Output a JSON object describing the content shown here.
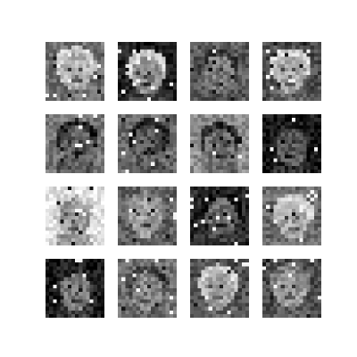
{
  "figure": {
    "grid_rows": 4,
    "grid_cols": 4,
    "tiles": [
      {
        "tone": "mid",
        "bg": "#6e6e6e",
        "face": "#b4b4b4",
        "hair": "#cfcfcf"
      },
      {
        "tone": "dark",
        "bg": "#1c1c1c",
        "face": "#8a8a8a",
        "hair": "#d0d0d0"
      },
      {
        "tone": "mid",
        "bg": "#5a5a5a",
        "face": "#7c7c7c",
        "hair": "#3a3a3a"
      },
      {
        "tone": "mid",
        "bg": "#4a4a4a",
        "face": "#a8a8a8",
        "hair": "#d8d8d8"
      },
      {
        "tone": "mid",
        "bg": "#7a7a7a",
        "face": "#5c5c5c",
        "hair": "#222222"
      },
      {
        "tone": "mid",
        "bg": "#6a6a6a",
        "face": "#5a5a5a",
        "hair": "#1e1e1e"
      },
      {
        "tone": "light",
        "bg": "#8e8e8e",
        "face": "#6e6e6e",
        "hair": "#2a2a2a"
      },
      {
        "tone": "dark",
        "bg": "#141414",
        "face": "#5a5a5a",
        "hair": "#1a1a1a"
      },
      {
        "tone": "light",
        "bg": "#e6e6e6",
        "face": "#9a9a9a",
        "hair": "#c8c8c8"
      },
      {
        "tone": "mid",
        "bg": "#5e5e5e",
        "face": "#a0a0a0",
        "hair": "#8a8a8a"
      },
      {
        "tone": "dark",
        "bg": "#2a2a2a",
        "face": "#6a6a6a",
        "hair": "#0e0e0e"
      },
      {
        "tone": "mid",
        "bg": "#6a6a6a",
        "face": "#a8a8a8",
        "hair": "#d2d2d2"
      },
      {
        "tone": "dark",
        "bg": "#161616",
        "face": "#7a7a7a",
        "hair": "#2a2a2a"
      },
      {
        "tone": "mid",
        "bg": "#6e6e6e",
        "face": "#8a8a8a",
        "hair": "#3a3a3a"
      },
      {
        "tone": "mid",
        "bg": "#4e4e4e",
        "face": "#a8a8a8",
        "hair": "#cfcfcf"
      },
      {
        "tone": "mid",
        "bg": "#4a4a4a",
        "face": "#9a9a9a",
        "hair": "#7a7a7a"
      }
    ]
  }
}
